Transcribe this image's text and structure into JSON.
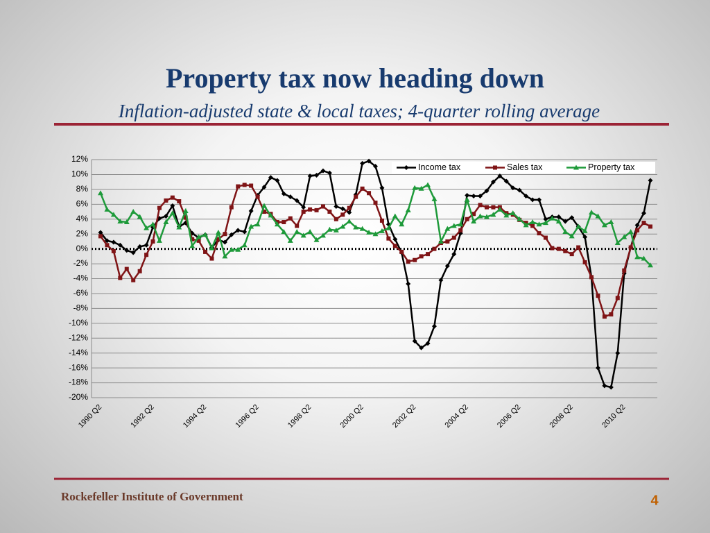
{
  "title": "Property tax now heading down",
  "subtitle": "Inflation-adjusted state & local taxes; 4-quarter rolling average",
  "footer": "Rockefeller Institute of Government",
  "page_number": "4",
  "chart_data": {
    "type": "line",
    "categories": [
      "1990 Q2",
      null,
      null,
      null,
      null,
      null,
      null,
      null,
      "1992 Q2",
      null,
      null,
      null,
      null,
      null,
      null,
      null,
      "1994 Q2",
      null,
      null,
      null,
      null,
      null,
      null,
      null,
      "1996 Q2",
      null,
      null,
      null,
      null,
      null,
      null,
      null,
      "1998 Q2",
      null,
      null,
      null,
      null,
      null,
      null,
      null,
      "2000 Q2",
      null,
      null,
      null,
      null,
      null,
      null,
      null,
      "2002 Q2",
      null,
      null,
      null,
      null,
      null,
      null,
      null,
      "2004 Q2",
      null,
      null,
      null,
      null,
      null,
      null,
      null,
      "2006 Q2",
      null,
      null,
      null,
      null,
      null,
      null,
      null,
      "2008 Q2",
      null,
      null,
      null,
      null,
      null,
      null,
      null,
      "2010 Q2",
      null,
      null,
      null,
      null
    ],
    "series": [
      {
        "name": "Income tax",
        "color": "#000000",
        "marker": "diamond",
        "values": [
          2.2,
          1.1,
          0.9,
          0.5,
          -0.2,
          -0.5,
          0.3,
          0.5,
          2.9,
          4.1,
          4.4,
          5.8,
          3.0,
          3.5,
          2.1,
          1.5,
          1.9,
          0.2,
          1.2,
          0.9,
          1.9,
          2.5,
          2.3,
          5.1,
          7.2,
          8.3,
          9.6,
          9.2,
          7.4,
          7.0,
          6.5,
          5.6,
          9.8,
          9.9,
          10.5,
          10.2,
          5.7,
          5.4,
          4.9,
          7.3,
          11.5,
          11.8,
          11.1,
          8.2,
          3.3,
          1.3,
          -0.5,
          -4.7,
          -12.4,
          -13.3,
          -12.7,
          -10.4,
          -4.2,
          -2.3,
          -0.7,
          2.1,
          7.2,
          7.1,
          7.1,
          7.8,
          9.0,
          9.8,
          9.1,
          8.2,
          7.9,
          7.1,
          6.6,
          6.6,
          4.0,
          4.3,
          4.3,
          3.7,
          4.2,
          3.0,
          1.6,
          -3.8,
          -16.0,
          -18.4,
          -18.6,
          -14.0,
          -3.3,
          0.2,
          3.2,
          4.8,
          9.2
        ]
      },
      {
        "name": "Sales tax",
        "color": "#7f1416",
        "marker": "square",
        "values": [
          1.7,
          0.5,
          -0.3,
          -3.9,
          -2.7,
          -4.2,
          -3.0,
          -0.8,
          1.0,
          5.5,
          6.5,
          6.9,
          6.4,
          4.2,
          1.3,
          1.1,
          -0.4,
          -1.3,
          1.3,
          2.0,
          5.6,
          8.4,
          8.6,
          8.5,
          7.0,
          5.0,
          4.7,
          3.6,
          3.6,
          4.1,
          3.1,
          5.0,
          5.3,
          5.2,
          5.7,
          5.0,
          4.0,
          4.6,
          5.5,
          7.0,
          8.1,
          7.5,
          6.2,
          3.8,
          1.4,
          0.4,
          -0.4,
          -1.7,
          -1.5,
          -1.0,
          -0.7,
          0.0,
          0.8,
          1.0,
          1.5,
          2.5,
          4.0,
          4.7,
          5.9,
          5.6,
          5.6,
          5.6,
          4.8,
          4.6,
          3.9,
          3.5,
          3.1,
          2.1,
          1.5,
          0.1,
          0.0,
          -0.3,
          -0.7,
          0.2,
          -1.8,
          -3.8,
          -6.3,
          -9.1,
          -8.8,
          -6.6,
          -2.9,
          0.2,
          2.5,
          3.5,
          3.0
        ]
      },
      {
        "name": "Property tax",
        "color": "#1e9a3a",
        "marker": "triangle",
        "values": [
          7.5,
          5.3,
          4.6,
          3.7,
          3.6,
          5.0,
          4.3,
          2.8,
          3.3,
          1.1,
          3.6,
          4.8,
          2.9,
          5.1,
          0.4,
          1.6,
          1.9,
          0.1,
          2.2,
          -1.0,
          -0.1,
          -0.1,
          0.5,
          3.0,
          3.3,
          5.8,
          4.5,
          3.3,
          2.3,
          1.1,
          2.3,
          1.8,
          2.3,
          1.2,
          1.8,
          2.6,
          2.5,
          3.0,
          3.7,
          2.9,
          2.7,
          2.2,
          2.0,
          2.4,
          2.8,
          4.4,
          3.3,
          5.2,
          8.2,
          8.1,
          8.6,
          6.7,
          1.0,
          2.7,
          3.1,
          3.3,
          6.6,
          3.7,
          4.4,
          4.3,
          4.6,
          5.3,
          4.5,
          4.8,
          4.0,
          3.2,
          3.6,
          3.3,
          3.5,
          4.1,
          3.7,
          2.3,
          1.7,
          3.0,
          2.4,
          4.9,
          4.4,
          3.2,
          3.6,
          0.8,
          1.6,
          2.3,
          -1.1,
          -1.3,
          -2.2
        ]
      }
    ],
    "ylim": [
      -20,
      12
    ],
    "yticks": [
      {
        "value": -20,
        "label": "-20%"
      },
      {
        "value": -18,
        "label": "-18%"
      },
      {
        "value": -16,
        "label": "-16%"
      },
      {
        "value": -14,
        "label": "-14%"
      },
      {
        "value": -12,
        "label": "-12%"
      },
      {
        "value": -10,
        "label": "-10%"
      },
      {
        "value": -8,
        "label": "-8%"
      },
      {
        "value": -6,
        "label": "-6%"
      },
      {
        "value": -4,
        "label": "-4%"
      },
      {
        "value": -2,
        "label": "-2%"
      },
      {
        "value": 0,
        "label": "0%"
      },
      {
        "value": 2,
        "label": "2%"
      },
      {
        "value": 4,
        "label": "4%"
      },
      {
        "value": 6,
        "label": "6%"
      },
      {
        "value": 8,
        "label": "8%"
      },
      {
        "value": 10,
        "label": "10%"
      },
      {
        "value": 12,
        "label": "12%"
      }
    ],
    "grid": true,
    "legend": "top-right"
  }
}
